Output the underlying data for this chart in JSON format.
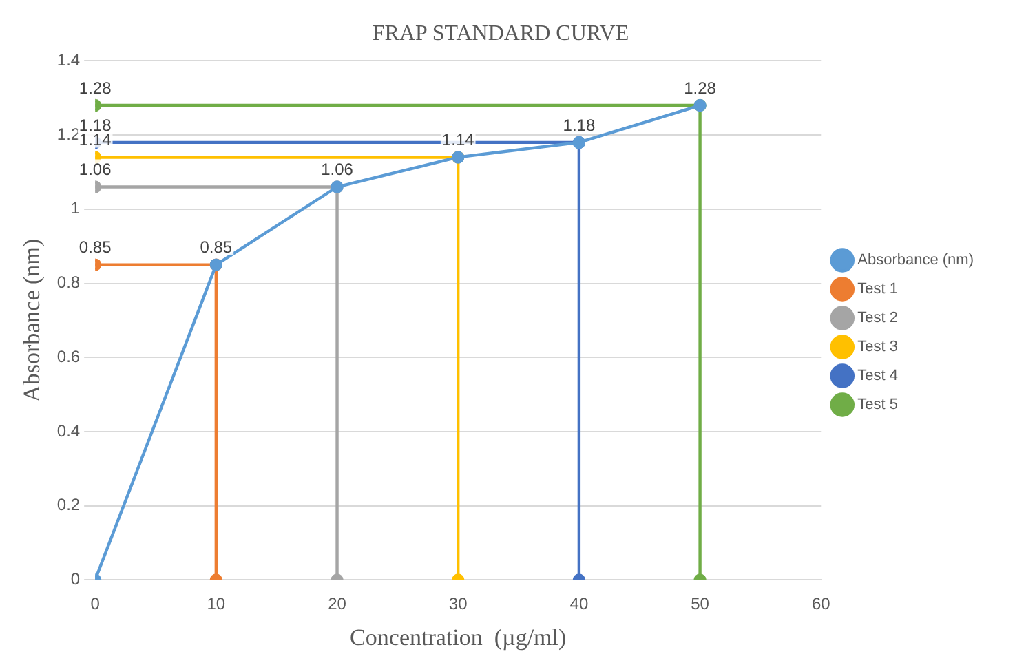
{
  "chart_data": {
    "type": "line",
    "title": "FRAP STANDARD CURVE",
    "xlabel": "Concentration  (µg/ml)",
    "ylabel": "Absorbance (nm)",
    "series": [
      {
        "name": "Absorbance (nm)",
        "color": "#5b9bd5",
        "x": [
          0,
          10,
          20,
          30,
          40,
          50
        ],
        "values": [
          0,
          0.85,
          1.06,
          1.14,
          1.18,
          1.28
        ]
      },
      {
        "name": "Test 1",
        "color": "#ed7d31",
        "x": [
          0,
          10,
          10
        ],
        "values": [
          0.85,
          0.85,
          0
        ],
        "value_labels": [
          "0.85",
          "0.85",
          null
        ]
      },
      {
        "name": "Test 2",
        "color": "#a5a5a5",
        "x": [
          0,
          20,
          20
        ],
        "values": [
          1.06,
          1.06,
          0
        ],
        "value_labels": [
          "1.06",
          "1.06",
          null
        ]
      },
      {
        "name": "Test 3",
        "color": "#ffc000",
        "x": [
          0,
          30,
          30
        ],
        "values": [
          1.14,
          1.14,
          0
        ],
        "value_labels": [
          "1.14",
          "1.14",
          null
        ]
      },
      {
        "name": "Test 4",
        "color": "#4472c4",
        "x": [
          0,
          40,
          40
        ],
        "values": [
          1.18,
          1.18,
          0
        ],
        "value_labels": [
          "1.18",
          "1.18",
          null
        ]
      },
      {
        "name": "Test 5",
        "color": "#70ad47",
        "x": [
          0,
          50,
          50
        ],
        "values": [
          1.28,
          1.28,
          0
        ],
        "value_labels": [
          "1.28",
          "1.28",
          null
        ]
      }
    ],
    "xlim": [
      0,
      60
    ],
    "xticks": [
      0,
      10,
      20,
      30,
      40,
      50,
      60
    ],
    "ylim": [
      0,
      1.4
    ],
    "yticks": [
      0,
      0.2,
      0.4,
      0.6,
      0.8,
      1,
      1.2,
      1.4
    ],
    "grid": "y",
    "legend": "right",
    "marker": "circle",
    "line_style": "solid"
  }
}
